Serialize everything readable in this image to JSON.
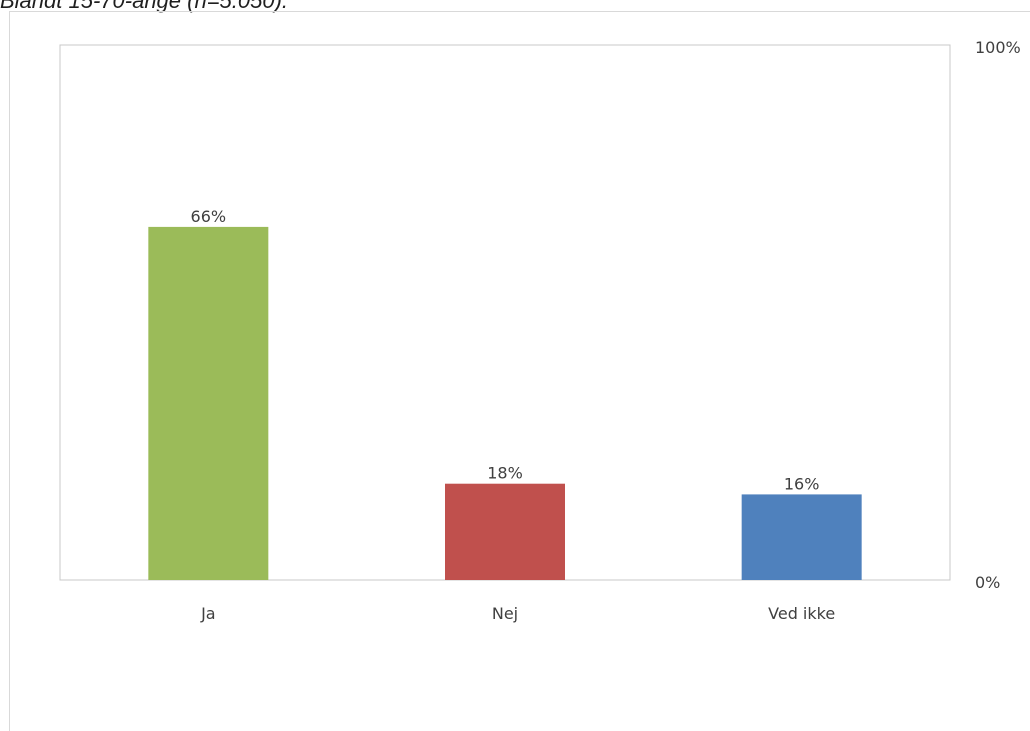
{
  "caption": "Blandt 15-70-årige (n=5.050).",
  "chart_data": {
    "type": "bar",
    "categories": [
      "Ja",
      "Nej",
      "Ved ikke"
    ],
    "values": [
      66,
      18,
      16
    ],
    "value_labels": [
      "66%",
      "18%",
      "16%"
    ],
    "colors": [
      "#9bbb59",
      "#c0504d",
      "#4f81bd"
    ],
    "ylim": [
      0,
      100
    ],
    "y_tick_labels": [
      "0%",
      "100%"
    ],
    "y_axis_side": "right",
    "grid": false,
    "legend": false
  }
}
